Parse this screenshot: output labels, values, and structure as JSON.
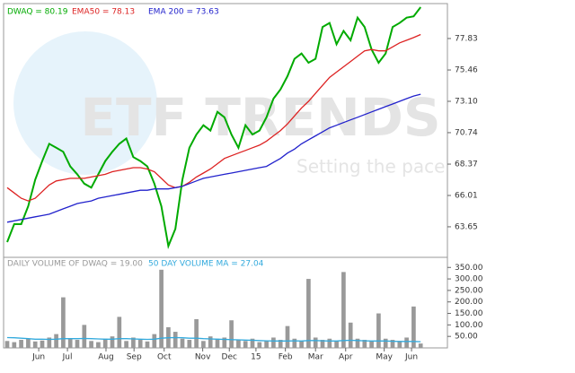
{
  "chart_data": [
    {
      "type": "line",
      "watermark": "ETF TRENDS",
      "watermark_subtitle": "Setting the pace",
      "x": [
        0,
        1,
        2,
        3,
        4,
        5,
        6,
        7,
        8,
        9,
        10,
        11,
        12,
        13,
        14,
        15,
        16,
        17,
        18,
        19,
        20,
        21,
        22,
        23,
        24,
        25,
        26,
        27,
        28,
        29,
        30,
        31,
        32,
        33,
        34,
        35,
        36,
        37,
        38,
        39,
        40,
        41,
        42,
        43,
        44,
        45,
        46,
        47,
        48,
        49,
        50,
        51,
        52,
        53,
        54,
        55,
        56,
        57,
        58,
        59
      ],
      "xlim": [
        0,
        60
      ],
      "ylim": [
        61.35,
        80.46
      ],
      "yticks": [
        63.65,
        66.01,
        68.37,
        70.74,
        {
          "value": 73.1,
          "label": "73.10"
        },
        75.46,
        77.83
      ],
      "series": [
        {
          "name": "DWAQ = 80.19",
          "color": "#00aa00",
          "values": [
            62.5,
            63.85,
            63.85,
            65.2,
            67.2,
            68.6,
            69.9,
            69.6,
            69.3,
            68.2,
            67.6,
            66.9,
            66.6,
            67.6,
            68.6,
            69.3,
            69.9,
            70.3,
            68.9,
            68.6,
            68.2,
            66.9,
            65.2,
            62.2,
            63.5,
            67.2,
            69.6,
            70.6,
            71.3,
            70.9,
            72.3,
            71.9,
            70.6,
            69.6,
            71.3,
            70.6,
            70.9,
            71.9,
            73.3,
            74.0,
            75.0,
            76.3,
            76.7,
            76.0,
            76.3,
            78.7,
            79.0,
            77.4,
            78.4,
            77.7,
            79.4,
            78.7,
            77.0,
            76.0,
            76.7,
            78.7,
            79.0,
            79.4,
            79.5,
            80.19
          ]
        },
        {
          "name": "EMA50 = 78.13",
          "color": "#dd2222",
          "values": [
            66.6,
            66.2,
            65.8,
            65.6,
            65.8,
            66.3,
            66.8,
            67.1,
            67.2,
            67.3,
            67.3,
            67.3,
            67.4,
            67.5,
            67.6,
            67.8,
            67.9,
            68.0,
            68.1,
            68.1,
            68.0,
            67.8,
            67.3,
            66.8,
            66.6,
            66.7,
            67.0,
            67.4,
            67.7,
            68.0,
            68.4,
            68.8,
            69.0,
            69.2,
            69.4,
            69.6,
            69.8,
            70.1,
            70.5,
            70.9,
            71.4,
            72.0,
            72.6,
            73.1,
            73.7,
            74.3,
            74.9,
            75.3,
            75.7,
            76.1,
            76.5,
            76.9,
            77.0,
            76.9,
            76.9,
            77.2,
            77.5,
            77.7,
            77.9,
            78.13
          ]
        },
        {
          "name": "EMA 200 = 73.63",
          "color": "#2222cc",
          "values": [
            64.0,
            64.1,
            64.2,
            64.3,
            64.4,
            64.5,
            64.6,
            64.8,
            65.0,
            65.2,
            65.4,
            65.5,
            65.6,
            65.8,
            65.9,
            66.0,
            66.1,
            66.2,
            66.3,
            66.4,
            66.4,
            66.5,
            66.5,
            66.5,
            66.6,
            66.7,
            66.9,
            67.1,
            67.3,
            67.4,
            67.5,
            67.6,
            67.7,
            67.8,
            67.9,
            68.0,
            68.1,
            68.2,
            68.5,
            68.8,
            69.2,
            69.5,
            69.9,
            70.2,
            70.5,
            70.8,
            71.1,
            71.3,
            71.5,
            71.7,
            71.9,
            72.1,
            72.3,
            72.5,
            72.7,
            72.9,
            73.1,
            73.3,
            73.5,
            73.63
          ]
        }
      ]
    },
    {
      "type": "bar",
      "x": [
        0,
        1,
        2,
        3,
        4,
        5,
        6,
        7,
        8,
        9,
        10,
        11,
        12,
        13,
        14,
        15,
        16,
        17,
        18,
        19,
        20,
        21,
        22,
        23,
        24,
        25,
        26,
        27,
        28,
        29,
        30,
        31,
        32,
        33,
        34,
        35,
        36,
        37,
        38,
        39,
        40,
        41,
        42,
        43,
        44,
        45,
        46,
        47,
        48,
        49,
        50,
        51,
        52,
        53,
        54,
        55,
        56,
        57,
        58,
        59
      ],
      "xlim": [
        0,
        60
      ],
      "xticks": [
        {
          "value": 4.5,
          "label": "Jun"
        },
        {
          "value": 8.6,
          "label": "Jul"
        },
        {
          "value": 14.1,
          "label": "Aug"
        },
        {
          "value": 18.1,
          "label": "Sep"
        },
        {
          "value": 22.4,
          "label": "Oct"
        },
        {
          "value": 27.9,
          "label": "Nov"
        },
        {
          "value": 31.7,
          "label": "Dec"
        },
        {
          "value": 35.5,
          "label": "15"
        },
        {
          "value": 39.7,
          "label": "Feb"
        },
        {
          "value": 44,
          "label": "Mar"
        },
        {
          "value": 48.3,
          "label": "Apr"
        },
        {
          "value": 53.8,
          "label": "May"
        },
        {
          "value": 57.7,
          "label": "Jun"
        }
      ],
      "ylim": [
        0,
        390
      ],
      "yticks": [
        {
          "value": 50,
          "label": "50.00"
        },
        {
          "value": 100,
          "label": "100.00"
        },
        {
          "value": 150,
          "label": "150.00"
        },
        {
          "value": 200,
          "label": "200.00"
        },
        {
          "value": 250,
          "label": "250.00"
        },
        {
          "value": 300,
          "label": "300.00"
        },
        {
          "value": 350,
          "label": "350.00"
        }
      ],
      "series": [
        {
          "name": "DAILY VOLUME OF DWAQ = 19.00",
          "color": "#999999",
          "type": "bar",
          "values": [
            30,
            25,
            35,
            40,
            28,
            32,
            45,
            60,
            220,
            40,
            35,
            100,
            30,
            25,
            40,
            50,
            135,
            30,
            45,
            35,
            28,
            60,
            340,
            90,
            70,
            40,
            35,
            125,
            30,
            50,
            40,
            45,
            120,
            35,
            30,
            40,
            25,
            30,
            45,
            35,
            95,
            40,
            30,
            300,
            45,
            35,
            40,
            30,
            330,
            110,
            40,
            35,
            30,
            150,
            40,
            35,
            30,
            45,
            180,
            19
          ]
        },
        {
          "name": "50 DAY VOLUME MA = 27.04",
          "color": "#33aadd",
          "type": "line",
          "values": [
            45,
            44,
            42,
            40,
            38,
            38,
            37,
            38,
            40,
            40,
            40,
            41,
            40,
            39,
            38,
            38,
            40,
            40,
            39,
            38,
            37,
            38,
            42,
            44,
            45,
            44,
            42,
            42,
            40,
            39,
            38,
            37,
            36,
            35,
            34,
            33,
            32,
            31,
            30,
            30,
            30,
            31,
            30,
            32,
            32,
            31,
            30,
            30,
            32,
            33,
            32,
            31,
            30,
            30,
            30,
            29,
            28,
            28,
            28,
            27.04
          ]
        }
      ]
    }
  ]
}
